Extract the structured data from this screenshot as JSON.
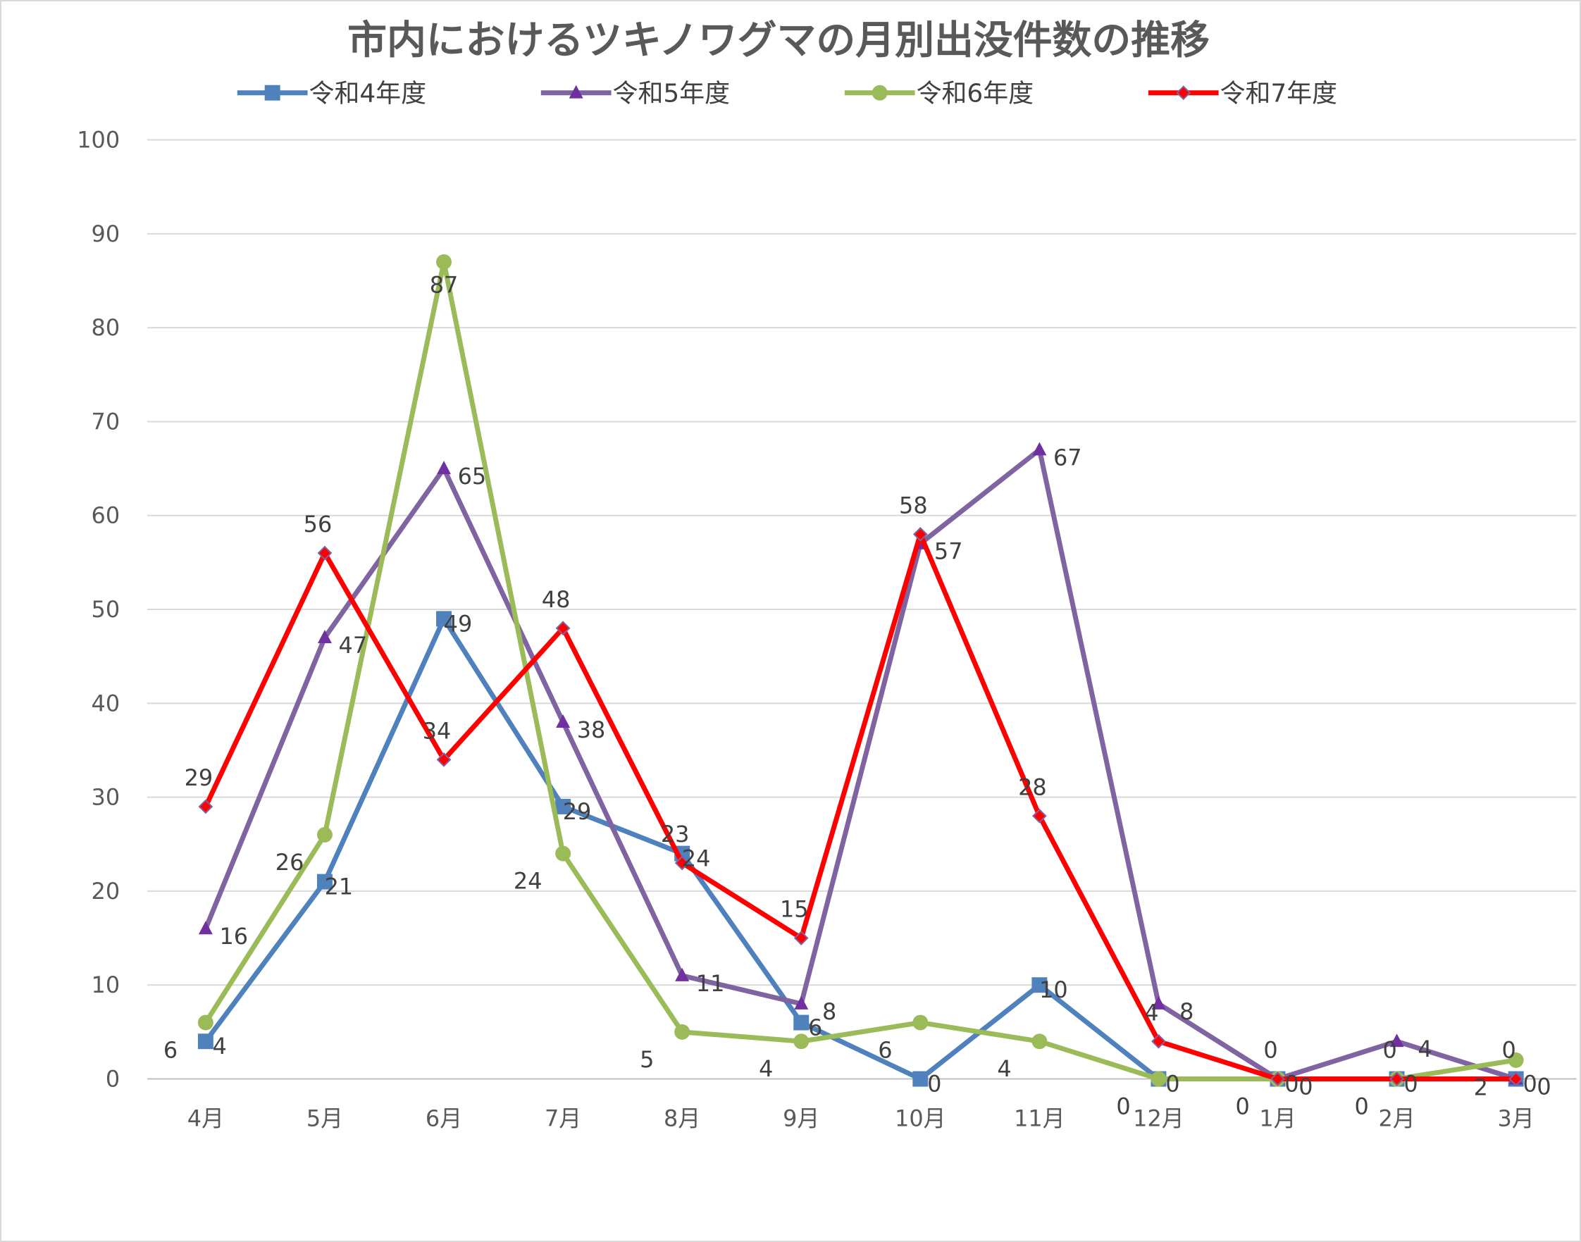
{
  "chart_data": {
    "type": "line",
    "title": "市内におけるツキノワグマの月別出没件数の推移",
    "xlabel": "",
    "ylabel": "",
    "ylim": [
      0,
      100
    ],
    "yticks": [
      "0",
      "10",
      "20",
      "30",
      "40",
      "50",
      "60",
      "70",
      "80",
      "90",
      "100"
    ],
    "grid": true,
    "legend_position": "top",
    "categories": [
      "4月",
      "5月",
      "6月",
      "7月",
      "8月",
      "9月",
      "10月",
      "11月",
      "12月",
      "1月",
      "2月",
      "3月"
    ],
    "series": [
      {
        "name": "令和4年度",
        "color": "#4f81bd",
        "marker": "square",
        "values": [
          4,
          21,
          49,
          29,
          24,
          6,
          0,
          10,
          0,
          0,
          0,
          0
        ]
      },
      {
        "name": "令和5年度",
        "color": "#8064a2",
        "marker": "triangle",
        "values": [
          16,
          47,
          65,
          38,
          11,
          8,
          57,
          67,
          8,
          0,
          4,
          0
        ]
      },
      {
        "name": "令和6年度",
        "color": "#9bbb59",
        "marker": "circle",
        "values": [
          6,
          26,
          87,
          24,
          5,
          4,
          6,
          4,
          0,
          0,
          0,
          2
        ]
      },
      {
        "name": "令和7年度",
        "color": "#ff0000",
        "marker": "diamond",
        "values": [
          29,
          56,
          34,
          48,
          23,
          15,
          58,
          28,
          4,
          0,
          0,
          0
        ]
      }
    ]
  }
}
